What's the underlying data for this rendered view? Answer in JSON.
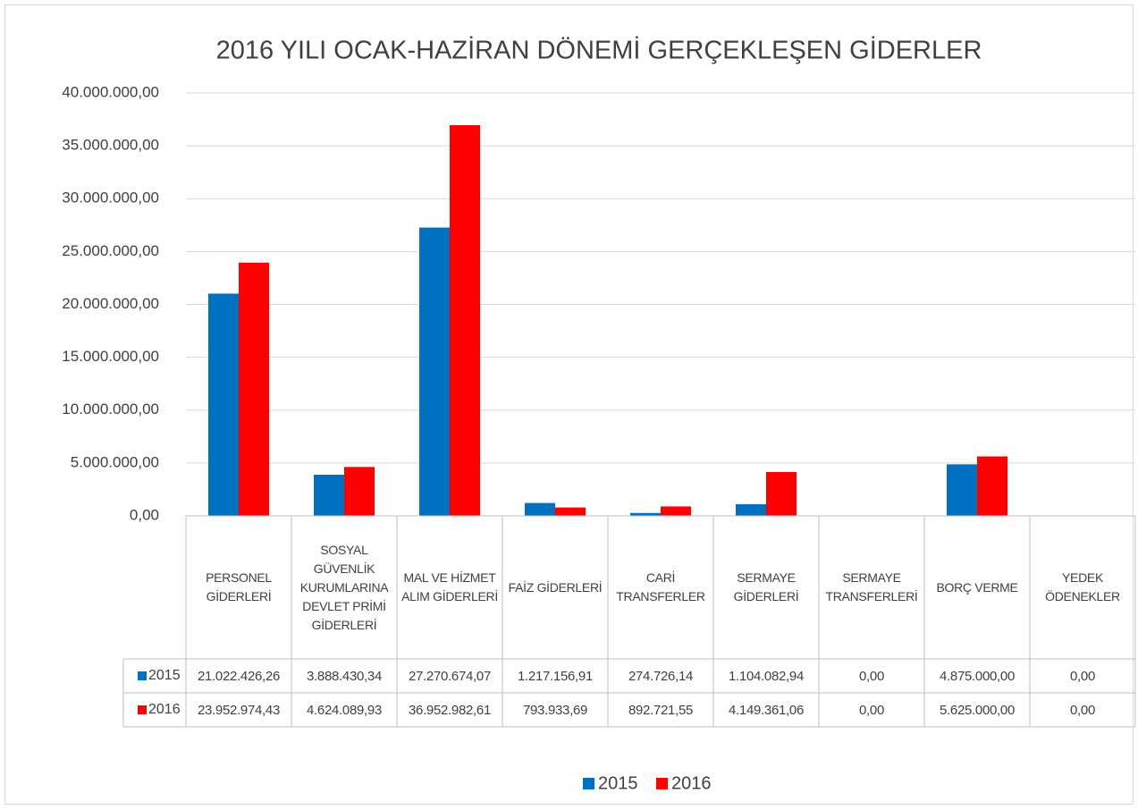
{
  "chart_data": {
    "type": "bar",
    "title": "2016 YILI  OCAK-HAZİRAN DÖNEMİ GERÇEKLEŞEN GİDERLER",
    "categories": [
      "PERSONEL GİDERLERİ",
      "SOSYAL GÜVENLİK KURUMLARINA DEVLET PRİMİ GİDERLERİ",
      "MAL VE HİZMET ALIM GİDERLERİ",
      "FAİZ GİDERLERİ",
      "CARİ TRANSFERLER",
      "SERMAYE GİDERLERİ",
      "SERMAYE TRANSFERLERİ",
      "BORÇ VERME",
      "YEDEK ÖDENEKLER"
    ],
    "series": [
      {
        "name": "2015",
        "color": "#0070c0",
        "values": [
          21022426.26,
          3888430.34,
          27270674.07,
          1217156.91,
          274726.14,
          1104082.94,
          0,
          4875000,
          0
        ],
        "value_labels": [
          "21.022.426,26",
          "3.888.430,34",
          "27.270.674,07",
          "1.217.156,91",
          "274.726,14",
          "1.104.082,94",
          "0,00",
          "4.875.000,00",
          "0,00"
        ]
      },
      {
        "name": "2016",
        "color": "#ff0000",
        "values": [
          23952974.43,
          4624089.93,
          36952982.61,
          793933.69,
          892721.55,
          4149361.06,
          0,
          5625000,
          0
        ],
        "value_labels": [
          "23.952.974,43",
          "4.624.089,93",
          "36.952.982,61",
          "793.933,69",
          "892.721,55",
          "4.149.361,06",
          "0,00",
          "5.625.000,00",
          "0,00"
        ]
      }
    ],
    "ylim": [
      0,
      40000000
    ],
    "yticks": [
      {
        "value": 0,
        "label": "0,00"
      },
      {
        "value": 5000000,
        "label": "5.000.000,00"
      },
      {
        "value": 10000000,
        "label": "10.000.000,00"
      },
      {
        "value": 15000000,
        "label": "15.000.000,00"
      },
      {
        "value": 20000000,
        "label": "20.000.000,00"
      },
      {
        "value": 25000000,
        "label": "25.000.000,00"
      },
      {
        "value": 30000000,
        "label": "30.000.000,00"
      },
      {
        "value": 35000000,
        "label": "35.000.000,00"
      },
      {
        "value": 40000000,
        "label": "40.000.000,00"
      }
    ],
    "grid": true,
    "legend": "bottom"
  }
}
